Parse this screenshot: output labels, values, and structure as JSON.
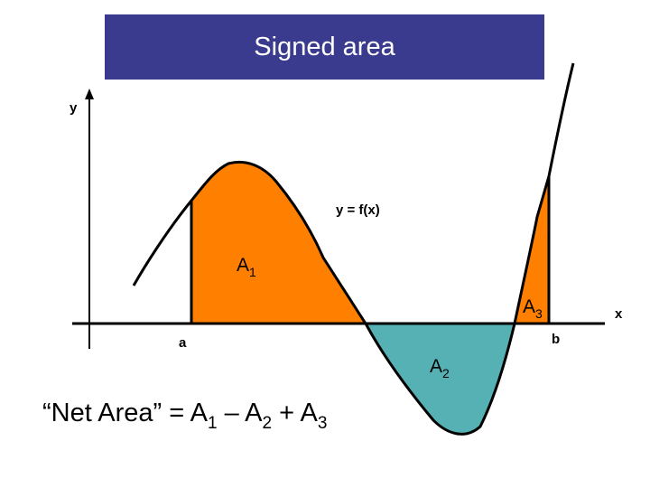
{
  "title": "Signed area",
  "colors": {
    "title_bg": "#3a3a8f",
    "positive_fill": "#ff7f00",
    "negative_fill": "#56b1b5",
    "curve": "#000000"
  },
  "axes": {
    "x_label": "x",
    "y_label": "y"
  },
  "bounds": {
    "a": "a",
    "b": "b"
  },
  "function_label": "y = f(x)",
  "regions": [
    {
      "base": "A",
      "sub": "1",
      "sign": "positive"
    },
    {
      "base": "A",
      "sub": "2",
      "sign": "negative"
    },
    {
      "base": "A",
      "sub": "3",
      "sign": "positive"
    }
  ],
  "formula": {
    "prefix": "“Net Area” = A",
    "sub1": "1",
    "op1": " – A",
    "sub2": "2",
    "op2": " + A",
    "sub3": "3"
  }
}
